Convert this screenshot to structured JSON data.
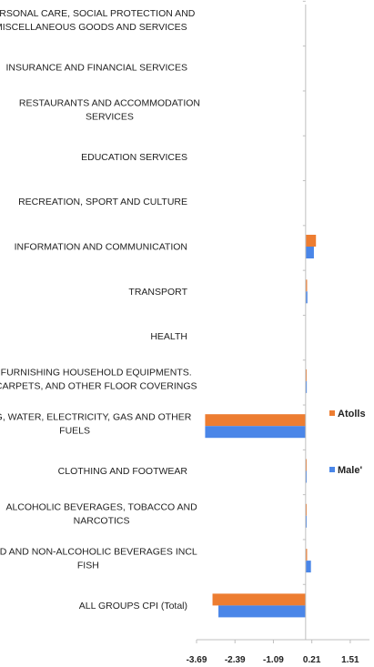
{
  "chart_data": {
    "type": "bar",
    "orientation": "horizontal",
    "categories": [
      "PERSONAL CARE, SOCIAL PROTECTION AND|MISCELLANEOUS GOODS AND SERVICES",
      "INSURANCE AND FINANCIAL SERVICES",
      "RESTAURANTS AND ACCOMMODATION|SERVICES",
      "EDUCATION SERVICES",
      "RECREATION, SPORT AND CULTURE",
      "INFORMATION AND COMMUNICATION",
      "TRANSPORT",
      "HEALTH",
      "FURNISHING HOUSEHOLD EQUIPMENTS.|CARPETS, AND OTHER FLOOR COVERINGS",
      "HOUSING, WATER, ELECTRICITY, GAS AND OTHER|FUELS",
      "CLOTHING AND FOOTWEAR",
      "ALCOHOLIC BEVERAGES, TOBACCO AND|NARCOTICS",
      "FOOD AND NON-ALCOHOLIC BEVERAGES INCL|FISH",
      "ALL GROUPS CPI (Total)"
    ],
    "series": [
      {
        "name": "Atolls",
        "color": "#ED7D31",
        "values": [
          0,
          0,
          0,
          0,
          0,
          0.35,
          0.05,
          0,
          0.03,
          -3.4,
          0.01,
          0.02,
          0.05,
          -3.15
        ]
      },
      {
        "name": "Male'",
        "color": "#4A86E8",
        "values": [
          0,
          0,
          0,
          0,
          0,
          0.28,
          0.06,
          0,
          0.04,
          -3.4,
          0.02,
          0.01,
          0.18,
          -2.95
        ]
      }
    ],
    "x_ticks": [
      "-3.69",
      "-2.39",
      "-1.09",
      "0.21",
      "1.51"
    ],
    "xlim": [
      -3.69,
      2.16
    ],
    "grid": false,
    "legend_position": "right"
  }
}
